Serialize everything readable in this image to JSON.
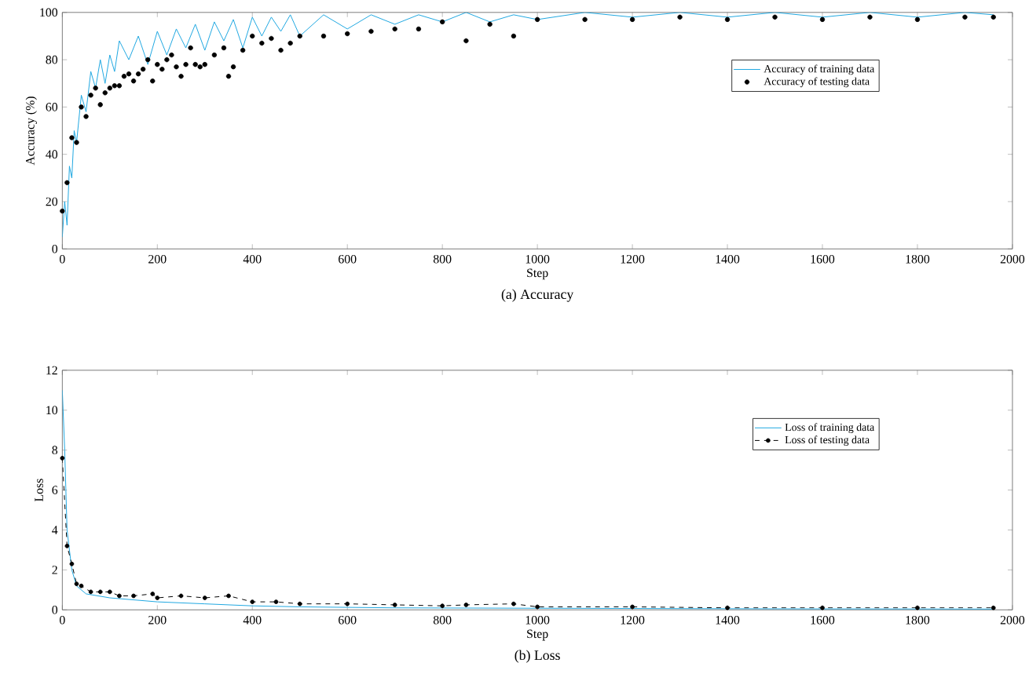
{
  "chart_data": [
    {
      "type": "line",
      "title": "(a) Accuracy",
      "xlabel": "Step",
      "ylabel": "Accuracy (%)",
      "xlim": [
        0,
        2000
      ],
      "ylim": [
        0,
        100
      ],
      "xticks": [
        0,
        200,
        400,
        600,
        800,
        1000,
        1200,
        1400,
        1600,
        1800,
        2000
      ],
      "yticks": [
        0,
        20,
        40,
        60,
        80,
        100
      ],
      "legend": "right",
      "series": [
        {
          "name": "Accuracy of training data",
          "color": "#1ea7e1",
          "x": [
            0,
            5,
            10,
            15,
            20,
            25,
            30,
            40,
            50,
            60,
            70,
            80,
            90,
            100,
            110,
            120,
            140,
            160,
            180,
            200,
            220,
            240,
            260,
            280,
            300,
            320,
            340,
            360,
            380,
            400,
            420,
            440,
            460,
            480,
            500,
            550,
            600,
            650,
            700,
            750,
            800,
            850,
            900,
            950,
            1000,
            1100,
            1200,
            1300,
            1400,
            1500,
            1600,
            1700,
            1800,
            1900,
            1960
          ],
          "values": [
            5,
            20,
            10,
            35,
            30,
            50,
            45,
            65,
            58,
            75,
            68,
            80,
            70,
            82,
            75,
            88,
            80,
            90,
            78,
            92,
            82,
            93,
            85,
            95,
            84,
            96,
            88,
            97,
            85,
            98,
            90,
            98,
            92,
            99,
            90,
            99,
            93,
            99,
            95,
            99,
            96,
            100,
            96,
            99,
            97,
            100,
            98,
            100,
            98,
            100,
            98,
            100,
            98,
            100,
            99
          ]
        },
        {
          "name": "Accuracy of testing data",
          "type": "scatter",
          "marker": "circle",
          "color": "#000000",
          "x": [
            0,
            10,
            20,
            30,
            40,
            50,
            60,
            70,
            80,
            90,
            100,
            110,
            120,
            130,
            140,
            150,
            160,
            170,
            180,
            190,
            200,
            210,
            220,
            230,
            240,
            250,
            260,
            270,
            280,
            290,
            300,
            320,
            340,
            350,
            360,
            380,
            400,
            420,
            440,
            460,
            480,
            500,
            550,
            600,
            650,
            700,
            750,
            800,
            850,
            900,
            950,
            1000,
            1100,
            1200,
            1300,
            1400,
            1500,
            1600,
            1700,
            1800,
            1900,
            1960
          ],
          "values": [
            16,
            28,
            47,
            45,
            60,
            56,
            65,
            68,
            61,
            66,
            68,
            69,
            69,
            73,
            74,
            71,
            74,
            76,
            80,
            71,
            78,
            76,
            80,
            82,
            77,
            73,
            78,
            85,
            78,
            77,
            78,
            82,
            85,
            73,
            77,
            84,
            90,
            87,
            89,
            84,
            87,
            90,
            90,
            91,
            92,
            93,
            93,
            96,
            88,
            95,
            90,
            97,
            97,
            97,
            98,
            97,
            98,
            97,
            98,
            97,
            98,
            98
          ]
        }
      ]
    },
    {
      "type": "line",
      "title": "(b) Loss",
      "xlabel": "Step",
      "ylabel": "Loss",
      "xlim": [
        0,
        2000
      ],
      "ylim": [
        0,
        12
      ],
      "xticks": [
        0,
        200,
        400,
        600,
        800,
        1000,
        1200,
        1400,
        1600,
        1800,
        2000
      ],
      "yticks": [
        0,
        2,
        4,
        6,
        8,
        10,
        12
      ],
      "legend": "right",
      "series": [
        {
          "name": "Loss of training data",
          "color": "#1ea7e1",
          "x": [
            0,
            5,
            10,
            20,
            30,
            50,
            100,
            200,
            300,
            400,
            500,
            700,
            1000,
            1500,
            1960
          ],
          "values": [
            11,
            8,
            4,
            2,
            1.2,
            0.8,
            0.6,
            0.4,
            0.3,
            0.2,
            0.15,
            0.1,
            0.08,
            0.05,
            0.04
          ]
        },
        {
          "name": "Loss of testing data",
          "type": "line",
          "marker": "circle",
          "line_style": "dashed",
          "color": "#000000",
          "x": [
            0,
            10,
            20,
            30,
            40,
            60,
            80,
            100,
            120,
            150,
            190,
            200,
            250,
            300,
            350,
            400,
            450,
            500,
            600,
            700,
            800,
            850,
            950,
            1000,
            1200,
            1400,
            1600,
            1800,
            1960
          ],
          "values": [
            7.6,
            3.2,
            2.3,
            1.3,
            1.2,
            0.9,
            0.9,
            0.9,
            0.7,
            0.7,
            0.8,
            0.6,
            0.7,
            0.6,
            0.7,
            0.4,
            0.4,
            0.3,
            0.3,
            0.25,
            0.2,
            0.25,
            0.3,
            0.15,
            0.15,
            0.1,
            0.1,
            0.1,
            0.1
          ]
        }
      ]
    }
  ]
}
